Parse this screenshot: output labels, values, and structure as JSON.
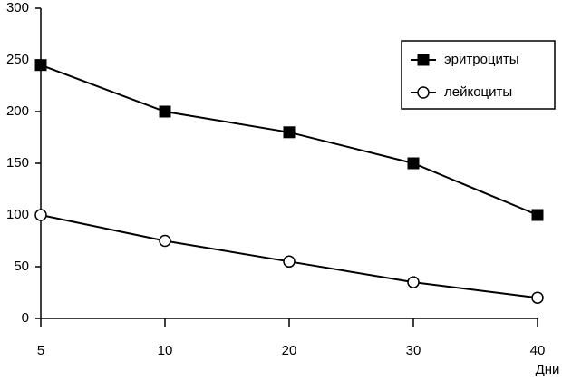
{
  "chart_data": {
    "type": "line",
    "x_label": "Дни",
    "categories": [
      "5",
      "10",
      "20",
      "30",
      "40"
    ],
    "series": [
      {
        "name": "эритроциты",
        "color": "#000000",
        "marker": "square",
        "values": [
          245,
          200,
          180,
          150,
          100
        ]
      },
      {
        "name": "лейкоциты",
        "color": "#000000",
        "marker": "circle",
        "values": [
          100,
          75,
          55,
          35,
          20
        ]
      }
    ],
    "ylim": [
      0,
      300
    ],
    "yticks": [
      0,
      50,
      100,
      150,
      200,
      250,
      300
    ],
    "grid": false,
    "legend": "upper right"
  }
}
